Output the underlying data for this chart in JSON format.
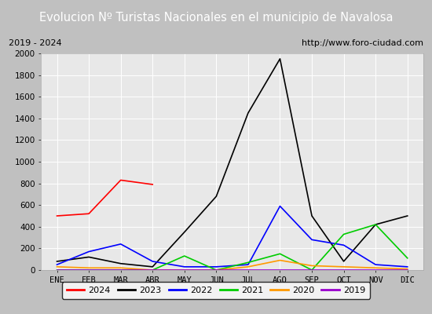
{
  "title": "Evolucion Nº Turistas Nacionales en el municipio de Navalosa",
  "subtitle_left": "2019 - 2024",
  "subtitle_right": "http://www.foro-ciudad.com",
  "x_labels": [
    "ENE",
    "FEB",
    "MAR",
    "ABR",
    "MAY",
    "JUN",
    "JUL",
    "AGO",
    "SEP",
    "OCT",
    "NOV",
    "DIC"
  ],
  "ylim": [
    0,
    2000
  ],
  "yticks": [
    0,
    200,
    400,
    600,
    800,
    1000,
    1200,
    1400,
    1600,
    1800,
    2000
  ],
  "series": {
    "2024": {
      "color": "#ff0000",
      "values": [
        500,
        520,
        830,
        790,
        null,
        null,
        null,
        null,
        null,
        null,
        null,
        null
      ]
    },
    "2023": {
      "color": "#000000",
      "values": [
        80,
        120,
        60,
        30,
        350,
        680,
        1450,
        1950,
        500,
        80,
        420,
        500
      ]
    },
    "2022": {
      "color": "#0000ff",
      "values": [
        50,
        170,
        240,
        80,
        30,
        30,
        50,
        590,
        280,
        230,
        50,
        30
      ]
    },
    "2021": {
      "color": "#00cc00",
      "values": [
        0,
        0,
        0,
        0,
        130,
        0,
        70,
        150,
        0,
        330,
        420,
        110
      ]
    },
    "2020": {
      "color": "#ff9900",
      "values": [
        30,
        20,
        20,
        0,
        0,
        0,
        30,
        90,
        40,
        30,
        20,
        10
      ]
    },
    "2019": {
      "color": "#9900cc",
      "values": [
        0,
        0,
        0,
        0,
        0,
        0,
        0,
        0,
        0,
        0,
        0,
        0
      ]
    }
  },
  "title_bg_color": "#4472c4",
  "title_font_color": "#ffffff",
  "plot_bg_color": "#e8e8e8",
  "outer_bg_color": "#c0c0c0",
  "inner_bg_color": "#f0f0f0",
  "grid_color": "#ffffff",
  "legend_order": [
    "2024",
    "2023",
    "2022",
    "2021",
    "2020",
    "2019"
  ],
  "title_fontsize": 10.5,
  "subtitle_fontsize": 8,
  "tick_fontsize": 7.5,
  "legend_fontsize": 8
}
